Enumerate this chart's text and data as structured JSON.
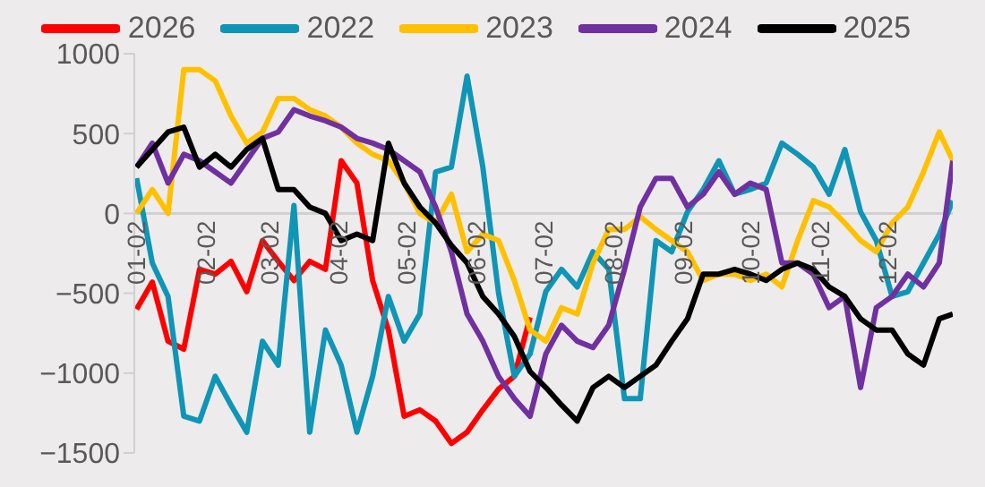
{
  "chart_data": {
    "type": "line",
    "x": [
      "--01-02",
      "--01-09",
      "--01-16",
      "--01-23",
      "--01-30",
      "--02-06",
      "--02-13",
      "--02-20",
      "--02-27",
      "--03-06",
      "--03-13",
      "--03-20",
      "--03-27",
      "--04-03",
      "--04-10",
      "--04-17",
      "--04-24",
      "--05-01",
      "--05-08",
      "--05-15",
      "--05-22",
      "--05-29",
      "--06-05",
      "--06-12",
      "--06-19",
      "--06-26",
      "--07-03",
      "--07-10",
      "--07-17",
      "--07-24",
      "--07-31",
      "--08-07",
      "--08-14",
      "--08-21",
      "--08-28",
      "--09-04",
      "--09-11",
      "--09-18",
      "--09-25",
      "--10-02",
      "--10-09",
      "--10-16",
      "--10-23",
      "--10-30",
      "--11-06",
      "--11-13",
      "--11-20",
      "--11-27",
      "--12-04",
      "--12-11",
      "--12-18",
      "--12-25",
      "--12-31"
    ],
    "series": [
      {
        "name": "2026",
        "color": "#ff0000",
        "values": [
          -600,
          -430,
          -800,
          -850,
          -350,
          -380,
          -300,
          -490,
          -170,
          -300,
          -420,
          -300,
          -350,
          330,
          190,
          -420,
          -730,
          -1270,
          -1230,
          -1300,
          -1440,
          -1370,
          -1230,
          -1100,
          -1020,
          -650,
          null,
          null,
          null,
          null,
          null,
          null,
          null,
          null,
          null,
          null,
          null,
          null,
          null,
          null,
          null,
          null,
          null,
          null,
          null,
          null,
          null,
          null,
          null,
          null,
          null,
          null,
          null
        ]
      },
      {
        "name": "2022",
        "color": "#0f95b6",
        "values": [
          220,
          -310,
          -520,
          -1270,
          -1300,
          -1020,
          -1200,
          -1370,
          -800,
          -950,
          50,
          -1370,
          -730,
          -950,
          -1370,
          -1020,
          -520,
          -800,
          -630,
          260,
          290,
          860,
          290,
          -500,
          -1020,
          -880,
          -490,
          -350,
          -460,
          -240,
          -350,
          -1160,
          -1160,
          -170,
          -240,
          10,
          150,
          330,
          120,
          150,
          190,
          440,
          370,
          290,
          120,
          400,
          10,
          -170,
          -520,
          -490,
          -310,
          -130,
          80
        ]
      },
      {
        "name": "2023",
        "color": "#ffc000",
        "values": [
          0,
          150,
          0,
          900,
          900,
          830,
          610,
          440,
          510,
          720,
          720,
          650,
          610,
          540,
          440,
          370,
          330,
          190,
          0,
          -60,
          120,
          -240,
          -130,
          -170,
          -420,
          -730,
          -800,
          -590,
          -630,
          -310,
          -100,
          -100,
          -20,
          -100,
          -170,
          -240,
          -420,
          -380,
          -380,
          -420,
          -380,
          -460,
          -170,
          80,
          40,
          -60,
          -170,
          -240,
          -60,
          40,
          260,
          510,
          330
        ]
      },
      {
        "name": "2024",
        "color": "#7030a0",
        "values": [
          290,
          440,
          190,
          370,
          330,
          260,
          190,
          330,
          470,
          510,
          650,
          610,
          580,
          540,
          470,
          440,
          400,
          330,
          260,
          40,
          -240,
          -630,
          -800,
          -1020,
          -1160,
          -1270,
          -880,
          -700,
          -800,
          -840,
          -700,
          -350,
          40,
          220,
          220,
          40,
          120,
          260,
          120,
          190,
          150,
          -310,
          -310,
          -380,
          -590,
          -520,
          -1090,
          -590,
          -520,
          -380,
          -460,
          -310,
          330
        ]
      },
      {
        "name": "2025",
        "color": "#000000",
        "values": [
          290,
          400,
          510,
          540,
          290,
          370,
          290,
          400,
          470,
          150,
          150,
          40,
          0,
          -170,
          -130,
          -170,
          440,
          190,
          40,
          -60,
          -200,
          -310,
          -520,
          -630,
          -770,
          -990,
          -1090,
          -1200,
          -1300,
          -1090,
          -1020,
          -1090,
          -1020,
          -950,
          -800,
          -660,
          -380,
          -380,
          -350,
          -380,
          -420,
          -350,
          -310,
          -350,
          -460,
          -520,
          -660,
          -730,
          -730,
          -880,
          -950,
          -660,
          -630
        ]
      }
    ],
    "xlim": [
      "--01-01",
      "--12-31"
    ],
    "xticks": [
      {
        "value": "--01-02",
        "label": "01-02"
      },
      {
        "value": "--02-02",
        "label": "02-02"
      },
      {
        "value": "--03-02",
        "label": "03-02"
      },
      {
        "value": "--04-02",
        "label": "04-02"
      },
      {
        "value": "--05-02",
        "label": "05-02"
      },
      {
        "value": "--06-02",
        "label": "06-02"
      },
      {
        "value": "--07-02",
        "label": "07-02"
      },
      {
        "value": "--08-02",
        "label": "08-02"
      },
      {
        "value": "--09-02",
        "label": "09-02"
      },
      {
        "value": "--10-02",
        "label": "10-02"
      },
      {
        "value": "--11-02",
        "label": "11-02"
      },
      {
        "value": "--12-02",
        "label": "12-02"
      }
    ],
    "ylim": [
      -1500,
      1000
    ],
    "yticks": [
      {
        "value": -1500,
        "label": "−1500"
      },
      {
        "value": -1000,
        "label": "−1000"
      },
      {
        "value": -500,
        "label": "−500"
      },
      0,
      500,
      1000
    ],
    "legend": "top",
    "marker": "none",
    "line_style": "solid"
  }
}
